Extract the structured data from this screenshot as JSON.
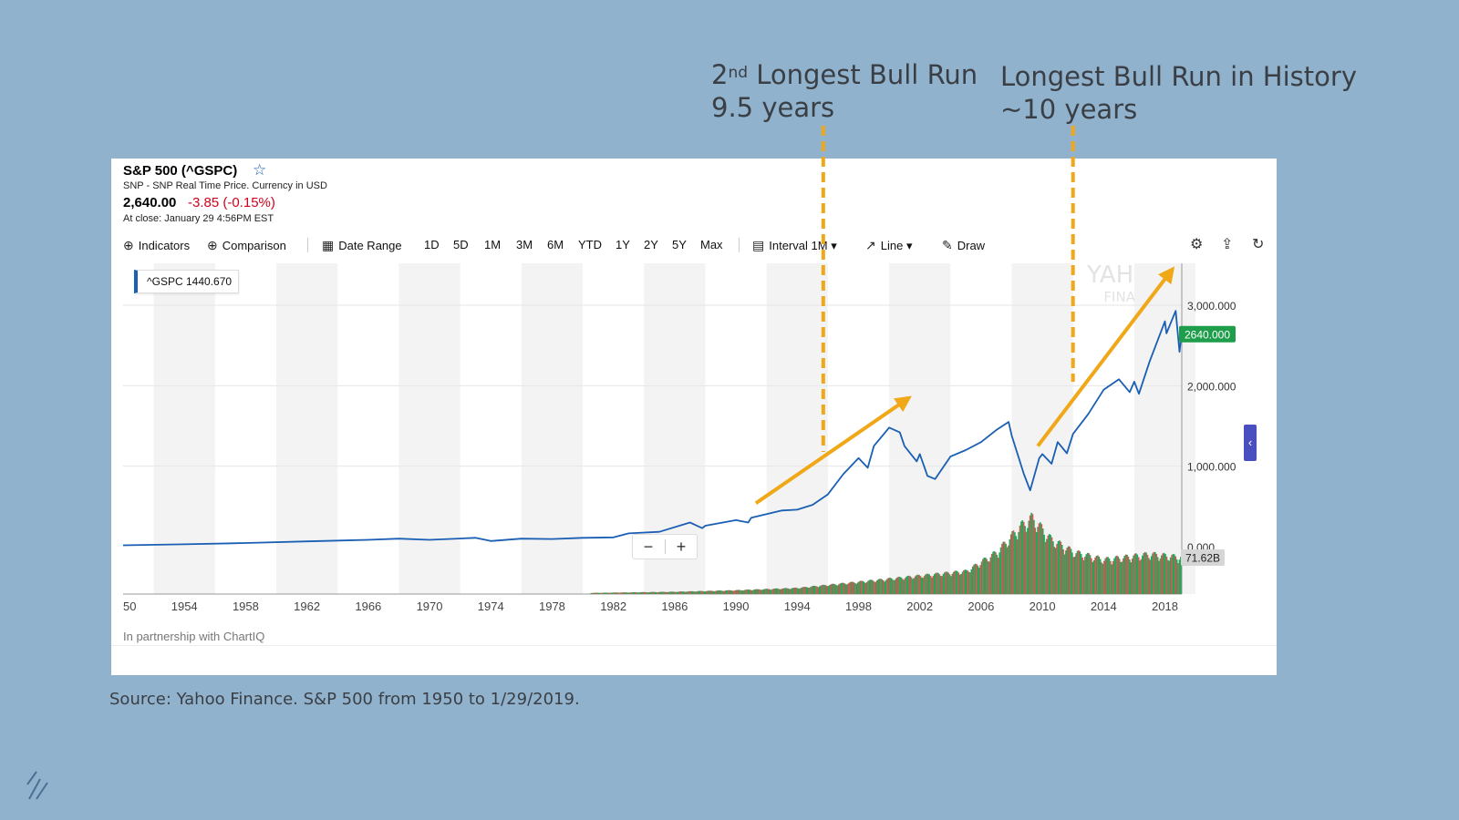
{
  "annotations": {
    "bull2_pre": "2",
    "bull2_sup": "nd",
    "bull2_line1": " Longest Bull Run",
    "bull2_line2": "9.5 years",
    "bull1_line1": "Longest Bull Run in History",
    "bull1_line2": "~10 years"
  },
  "header": {
    "title": "S&P 500 (^GSPC)",
    "subtitle": "SNP - SNP Real Time Price. Currency in USD",
    "price": "2,640.00",
    "change": "-3.85 (-0.15%)",
    "close": "At close: January 29 4:56PM EST"
  },
  "toolbar": {
    "indicators": "Indicators",
    "comparison": "Comparison",
    "date_range": "Date Range",
    "ranges": [
      "1D",
      "5D",
      "1M",
      "3M",
      "6M",
      "YTD",
      "1Y",
      "2Y",
      "5Y",
      "Max"
    ],
    "interval": "Interval",
    "interval_value": "1M",
    "line": "Line",
    "draw": "Draw"
  },
  "legend": {
    "symbol": "^GSPC",
    "value": "1440.670"
  },
  "watermark": {
    "line1": "YAHOO!",
    "line2": "FINANCE"
  },
  "footer": {
    "partner": "In partnership with ChartIQ"
  },
  "source": "Source: Yahoo Finance. S&P 500 from 1950 to 1/29/2019.",
  "colors": {
    "line": "#1a5fb4",
    "arrow": "#f0a818",
    "up": "#22a65a",
    "down": "#d9534f",
    "price_tag": "#1e9e4b"
  },
  "chart_data": {
    "type": "line",
    "title": "S&P 500 (^GSPC)",
    "x_ticks": [
      "50",
      "1954",
      "1958",
      "1962",
      "1966",
      "1970",
      "1974",
      "1978",
      "1982",
      "1986",
      "1990",
      "1994",
      "1998",
      "2002",
      "2006",
      "2010",
      "2014",
      "2018"
    ],
    "xlim": [
      1950,
      2019.1
    ],
    "y_ticks": [
      "0.000",
      "1,000.000",
      "2,000.000",
      "3,000.000"
    ],
    "ylim": [
      0,
      3450
    ],
    "last_price_label": "2640.000",
    "volume_label": "71.62B",
    "series": [
      {
        "name": "^GSPC",
        "points": [
          [
            1950,
            17
          ],
          [
            1954,
            30
          ],
          [
            1958,
            45
          ],
          [
            1962,
            66
          ],
          [
            1966,
            85
          ],
          [
            1968,
            100
          ],
          [
            1970,
            85
          ],
          [
            1973,
            110
          ],
          [
            1974,
            70
          ],
          [
            1976,
            100
          ],
          [
            1978,
            95
          ],
          [
            1980,
            110
          ],
          [
            1982,
            115
          ],
          [
            1983,
            165
          ],
          [
            1985,
            185
          ],
          [
            1987,
            300
          ],
          [
            1987.8,
            230
          ],
          [
            1988,
            260
          ],
          [
            1990,
            330
          ],
          [
            1990.8,
            300
          ],
          [
            1991,
            360
          ],
          [
            1993,
            450
          ],
          [
            1994,
            460
          ],
          [
            1995,
            520
          ],
          [
            1996,
            650
          ],
          [
            1997,
            900
          ],
          [
            1998,
            1100
          ],
          [
            1998.6,
            980
          ],
          [
            1999,
            1250
          ],
          [
            2000,
            1480
          ],
          [
            2000.7,
            1420
          ],
          [
            2001,
            1250
          ],
          [
            2001.8,
            1060
          ],
          [
            2002,
            1150
          ],
          [
            2002.5,
            880
          ],
          [
            2003,
            840
          ],
          [
            2004,
            1120
          ],
          [
            2005,
            1200
          ],
          [
            2006,
            1300
          ],
          [
            2007,
            1450
          ],
          [
            2007.8,
            1550
          ],
          [
            2008,
            1380
          ],
          [
            2008.8,
            900
          ],
          [
            2009.2,
            700
          ],
          [
            2009.8,
            1100
          ],
          [
            2010,
            1150
          ],
          [
            2010.6,
            1030
          ],
          [
            2011,
            1300
          ],
          [
            2011.6,
            1160
          ],
          [
            2012,
            1400
          ],
          [
            2013,
            1650
          ],
          [
            2014,
            1950
          ],
          [
            2015,
            2080
          ],
          [
            2015.7,
            1920
          ],
          [
            2016,
            2050
          ],
          [
            2016.3,
            1900
          ],
          [
            2017,
            2300
          ],
          [
            2018,
            2800
          ],
          [
            2018.1,
            2650
          ],
          [
            2018.7,
            2930
          ],
          [
            2018.95,
            2420
          ],
          [
            2019.08,
            2640
          ]
        ]
      }
    ],
    "volume": {
      "start_year": 1980.5,
      "end_year": 2019.05,
      "profile": [
        [
          1980.5,
          0.015
        ],
        [
          1986,
          0.03
        ],
        [
          1990,
          0.05
        ],
        [
          1994,
          0.08
        ],
        [
          1998,
          0.16
        ],
        [
          2002,
          0.24
        ],
        [
          2005,
          0.3
        ],
        [
          2007,
          0.55
        ],
        [
          2008.5,
          0.88
        ],
        [
          2009.3,
          1.0
        ],
        [
          2010.5,
          0.72
        ],
        [
          2012,
          0.55
        ],
        [
          2014,
          0.45
        ],
        [
          2017,
          0.52
        ],
        [
          2019,
          0.48
        ]
      ]
    },
    "annotations": [
      {
        "label": "2nd Longest Bull Run 9.5 years",
        "arrow_from": [
          1991.3,
          540
        ],
        "arrow_to": [
          2001.3,
          1850
        ],
        "marker_year": 1995.7
      },
      {
        "label": "Longest Bull Run in History ~10 years",
        "arrow_from": [
          2009.7,
          1250
        ],
        "arrow_to": [
          2018.5,
          3450
        ],
        "marker_year": 2012.0
      }
    ]
  }
}
